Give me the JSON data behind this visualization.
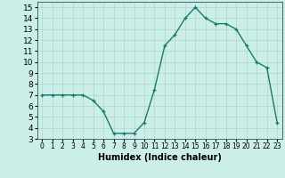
{
  "x_data": [
    0,
    1,
    2,
    3,
    4,
    5,
    6,
    7,
    8,
    9,
    10,
    11,
    12,
    13,
    14,
    15,
    16,
    17,
    18,
    19,
    20,
    21,
    22,
    23
  ],
  "y_data": [
    7,
    7,
    7,
    7,
    7,
    6.5,
    5.5,
    3.5,
    3.5,
    3.5,
    4.5,
    7.5,
    11.5,
    12.5,
    14,
    15,
    14,
    13.5,
    13.5,
    13,
    11.5,
    10,
    9.5,
    4.5
  ],
  "line_color": "#1a7a6a",
  "marker": "+",
  "bg_color": "#cceee8",
  "grid_color": "#b0d4cc",
  "xlabel": "Humidex (Indice chaleur)",
  "ylim": [
    3,
    15.5
  ],
  "xlim": [
    -0.5,
    23.5
  ],
  "yticks": [
    3,
    4,
    5,
    6,
    7,
    8,
    9,
    10,
    11,
    12,
    13,
    14,
    15
  ],
  "xticks": [
    0,
    1,
    2,
    3,
    4,
    5,
    6,
    7,
    8,
    9,
    10,
    11,
    12,
    13,
    14,
    15,
    16,
    17,
    18,
    19,
    20,
    21,
    22,
    23
  ],
  "xlabel_fontsize": 7,
  "ytick_fontsize": 6.5,
  "xtick_fontsize": 5.5,
  "marker_size": 3.5,
  "line_width": 1.0,
  "marker_edge_width": 0.9
}
